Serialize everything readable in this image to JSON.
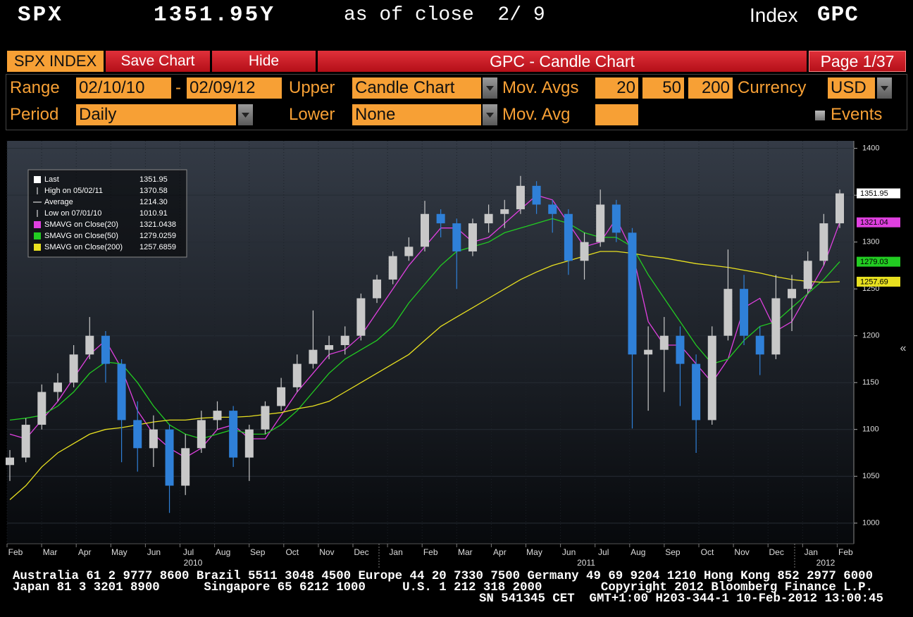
{
  "header": {
    "ticker": "SPX",
    "price": "1351.95Y",
    "as_of": "as of close  2/ 9",
    "security": "Index",
    "function": "GPC"
  },
  "toolbar": {
    "security": "SPX INDEX",
    "save": "Save Chart",
    "hide": "Hide",
    "title": "GPC - Candle Chart",
    "page": "Page 1/37"
  },
  "settings": {
    "range_label": "Range",
    "start": "02/10/10",
    "dash": "-",
    "end": "02/09/12",
    "upper_label": "Upper",
    "upper": "Candle Chart",
    "mov_avgs_label": "Mov. Avgs",
    "mov_avgs": [
      "20",
      "50",
      "200"
    ],
    "currency_label": "Currency",
    "currency": "USD",
    "period_label": "Period",
    "period": "Daily",
    "lower_label": "Lower",
    "lower": "None",
    "mov_avg_label": "Mov. Avg",
    "events": "Events"
  },
  "chart_data": {
    "type": "candlestick",
    "up_color": "#c8c8c8",
    "down_color": "#2f80d8",
    "open": [
      1062,
      1070,
      1105,
      1140,
      1150,
      1180,
      1200,
      1170,
      1110,
      1080,
      1100,
      1040,
      1080,
      1110,
      1120,
      1070,
      1100,
      1125,
      1145,
      1170,
      1185,
      1190,
      1200,
      1240,
      1260,
      1285,
      1295,
      1330,
      1320,
      1290,
      1320,
      1330,
      1335,
      1360,
      1340,
      1330,
      1280,
      1300,
      1340,
      1310,
      1180,
      1185,
      1200,
      1170,
      1110,
      1200,
      1250,
      1200,
      1180,
      1240,
      1250,
      1280,
      1320
    ],
    "high": [
      1078,
      1112,
      1148,
      1160,
      1190,
      1220,
      1205,
      1175,
      1130,
      1115,
      1105,
      1095,
      1120,
      1130,
      1125,
      1105,
      1130,
      1155,
      1180,
      1227,
      1200,
      1210,
      1245,
      1265,
      1290,
      1305,
      1344,
      1335,
      1325,
      1325,
      1340,
      1345,
      1370.58,
      1365,
      1345,
      1335,
      1310,
      1356,
      1345,
      1315,
      1210,
      1220,
      1210,
      1180,
      1210,
      1292,
      1265,
      1210,
      1265,
      1265,
      1290,
      1330,
      1356
    ],
    "low": [
      1045,
      1065,
      1100,
      1130,
      1145,
      1175,
      1150,
      1065,
      1055,
      1060,
      1010.91,
      1030,
      1075,
      1100,
      1060,
      1045,
      1095,
      1120,
      1140,
      1165,
      1175,
      1180,
      1195,
      1235,
      1255,
      1280,
      1290,
      1305,
      1250,
      1285,
      1310,
      1315,
      1330,
      1330,
      1310,
      1265,
      1260,
      1295,
      1300,
      1101,
      1120,
      1140,
      1125,
      1075,
      1105,
      1195,
      1190,
      1158,
      1175,
      1205,
      1245,
      1275,
      1315
    ],
    "close": [
      1070,
      1105,
      1140,
      1150,
      1180,
      1200,
      1170,
      1110,
      1080,
      1100,
      1040,
      1080,
      1110,
      1120,
      1070,
      1100,
      1125,
      1145,
      1170,
      1185,
      1190,
      1200,
      1240,
      1260,
      1285,
      1295,
      1330,
      1320,
      1290,
      1320,
      1330,
      1335,
      1360,
      1340,
      1330,
      1280,
      1300,
      1340,
      1310,
      1180,
      1185,
      1200,
      1170,
      1110,
      1200,
      1250,
      1200,
      1180,
      1240,
      1250,
      1280,
      1320,
      1351.95
    ],
    "series": [
      {
        "name": "SMAVG on Close(20)",
        "color": "#e040e0",
        "values": [
          1095,
          1090,
          1110,
          1130,
          1155,
          1180,
          1195,
          1165,
          1120,
          1095,
          1080,
          1070,
          1080,
          1100,
          1105,
          1090,
          1090,
          1115,
          1140,
          1160,
          1180,
          1185,
          1200,
          1225,
          1250,
          1275,
          1295,
          1315,
          1315,
          1300,
          1305,
          1320,
          1335,
          1350,
          1345,
          1320,
          1295,
          1300,
          1325,
          1290,
          1215,
          1190,
          1190,
          1170,
          1150,
          1175,
          1230,
          1240,
          1205,
          1215,
          1245,
          1275,
          1321.0438
        ],
        "value_labels": [
          null,
          null,
          null,
          null,
          null,
          null,
          null,
          null,
          null,
          null,
          null,
          null,
          null,
          null,
          null,
          null,
          null,
          null,
          null,
          null,
          null,
          null,
          null,
          null,
          null,
          null,
          null,
          null,
          null,
          null,
          null,
          null,
          null,
          null,
          null,
          null,
          null,
          null,
          null,
          null,
          null,
          null,
          null,
          null,
          null,
          null,
          null,
          null,
          null,
          null,
          null,
          null,
          "1321.04"
        ]
      },
      {
        "name": "SMAVG on Close(50)",
        "color": "#22cc22",
        "values": [
          1110,
          1112,
          1115,
          1125,
          1140,
          1160,
          1172,
          1170,
          1150,
          1125,
          1105,
          1095,
          1090,
          1095,
          1100,
          1095,
          1095,
          1105,
          1120,
          1140,
          1160,
          1175,
          1185,
          1195,
          1210,
          1235,
          1255,
          1275,
          1290,
          1295,
          1300,
          1310,
          1315,
          1320,
          1325,
          1320,
          1310,
          1305,
          1305,
          1295,
          1265,
          1240,
          1215,
          1190,
          1170,
          1175,
          1195,
          1210,
          1215,
          1230,
          1245,
          1260,
          1279.0259
        ],
        "value_labels": [
          null,
          null,
          null,
          null,
          null,
          null,
          null,
          null,
          null,
          null,
          null,
          null,
          null,
          null,
          null,
          null,
          null,
          null,
          null,
          null,
          null,
          null,
          null,
          null,
          null,
          null,
          null,
          null,
          null,
          null,
          null,
          null,
          null,
          null,
          null,
          null,
          null,
          null,
          null,
          null,
          null,
          null,
          null,
          null,
          null,
          null,
          null,
          null,
          null,
          null,
          null,
          null,
          "1279.03"
        ]
      },
      {
        "name": "SMAVG on Close(200)",
        "color": "#e8e020",
        "values": [
          1025,
          1040,
          1060,
          1075,
          1085,
          1095,
          1100,
          1102,
          1105,
          1108,
          1110,
          1110,
          1112,
          1113,
          1113,
          1114,
          1116,
          1118,
          1122,
          1125,
          1130,
          1140,
          1150,
          1160,
          1170,
          1180,
          1195,
          1210,
          1220,
          1230,
          1240,
          1250,
          1260,
          1268,
          1275,
          1280,
          1285,
          1290,
          1290,
          1288,
          1285,
          1283,
          1280,
          1277,
          1275,
          1273,
          1270,
          1267,
          1263,
          1260,
          1258,
          1257,
          1257.6859
        ],
        "value_labels": [
          null,
          null,
          null,
          null,
          null,
          null,
          null,
          null,
          null,
          null,
          null,
          null,
          null,
          null,
          null,
          null,
          null,
          null,
          null,
          null,
          null,
          null,
          null,
          null,
          null,
          null,
          null,
          null,
          null,
          null,
          null,
          null,
          null,
          null,
          null,
          null,
          null,
          null,
          null,
          null,
          null,
          null,
          null,
          null,
          null,
          null,
          null,
          null,
          null,
          null,
          null,
          null,
          "1257.69"
        ]
      }
    ],
    "legend": {
      "last": "Last",
      "high": "High on 05/02/11",
      "average": "Average",
      "average_value": "1214.30",
      "low": "Low on 07/01/10"
    },
    "ylim": [
      978,
      1408
    ],
    "yticks": [
      1000,
      1050,
      1100,
      1150,
      1200,
      1250,
      1300,
      1350,
      1400
    ],
    "grid": true,
    "months": [
      "Feb",
      "Mar",
      "Apr",
      "May",
      "Jun",
      "Jul",
      "Aug",
      "Sep",
      "Oct",
      "Nov",
      "Dec",
      "Jan",
      "Feb",
      "Mar",
      "Apr",
      "May",
      "Jun",
      "Jul",
      "Aug",
      "Sep",
      "Oct",
      "Nov",
      "Dec",
      "Jan",
      "Feb"
    ],
    "years": [
      "2010",
      "2011",
      "2012"
    ]
  },
  "footer": [
    "Australia 61 2 9777 8600 Brazil 5511 3048 4500 Europe 44 20 7330 7500 Germany 49 69 9204 1210 Hong Kong 852 2977 6000",
    "Japan 81 3 3201 8900      Singapore 65 6212 1000     U.S. 1 212 318 2000        Copyright 2012 Bloomberg Finance L.P.",
    "SN 541345 CET  GMT+1:00 H203-344-1 10-Feb-2012 13:00:45"
  ]
}
